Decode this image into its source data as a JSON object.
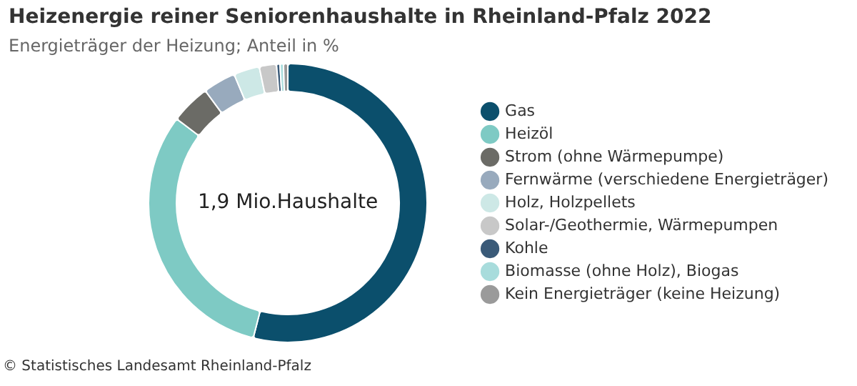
{
  "chart_data": {
    "type": "donut",
    "title": "Heizenergie reiner Seniorenhaushalte in Rheinland-Pfalz 2022",
    "subtitle": "Energieträger der Heizung; Anteil in %",
    "categories": [
      "Gas",
      "Heizöl",
      "Strom (ohne Wärmepumpe)",
      "Fernwärme (verschiedene Energieträger)",
      "Holz, Holzpellets",
      "Solar-/Geothermie, Wärmepumpen",
      "Kohle",
      "Biomasse (ohne Holz), Biogas",
      "Kein Energieträger (keine Heizung)"
    ],
    "values": [
      54.0,
      31.3,
      4.6,
      3.8,
      3.0,
      2.0,
      0.4,
      0.4,
      0.5
    ],
    "colors": [
      "#0b4f6c",
      "#7ecac4",
      "#6b6b66",
      "#98aabd",
      "#cde8e6",
      "#c8c8c8",
      "#3a5a78",
      "#a8dcdc",
      "#9a9a9a"
    ],
    "legend": "right",
    "annotations": [
      "1,9 Mio.Haushalte",
      "© Statistisches Landesamt Rheinland-Pfalz"
    ]
  }
}
